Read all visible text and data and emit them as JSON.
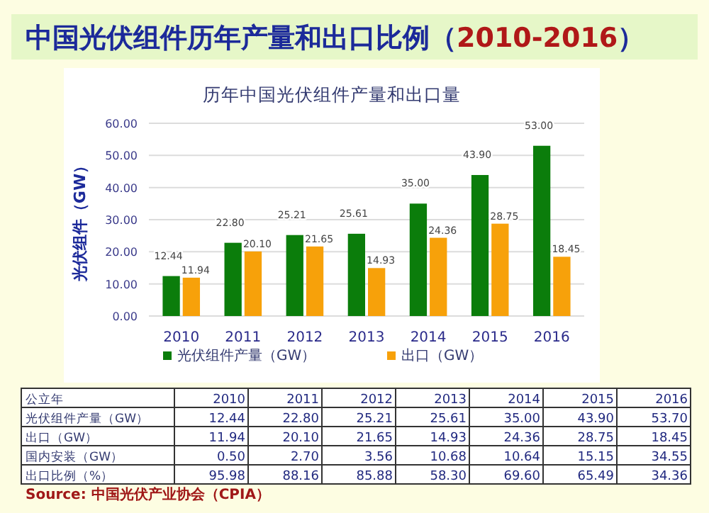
{
  "chart_data": {
    "type": "bar",
    "title": "中国光伏组件历年产量和出口比例（2010-2016）",
    "subtitle": "历年中国光伏组件产量和出口量",
    "ylabel": "光伏组件（GW）",
    "categories": [
      "2010",
      "2011",
      "2012",
      "2013",
      "2014",
      "2015",
      "2016"
    ],
    "series": [
      {
        "name": "光伏组件产量（GW）",
        "color": "#0b7d0b",
        "values": [
          12.44,
          22.8,
          25.21,
          25.61,
          35.0,
          43.9,
          53.0
        ],
        "value_labels": [
          "12.44",
          "22.80",
          "25.21",
          "25.61",
          "35.00",
          "43.90",
          "53.00"
        ]
      },
      {
        "name": "出口（GW）",
        "color": "#f7a10a",
        "values": [
          11.94,
          20.1,
          21.65,
          14.93,
          24.36,
          28.75,
          18.45
        ],
        "value_labels": [
          "11.94",
          "20.10",
          "21.65",
          "14.93",
          "24.36",
          "28.75",
          "18.45"
        ]
      }
    ],
    "ylim": [
      0,
      60
    ],
    "yticks": [
      {
        "value": 0,
        "label": "0.00"
      },
      {
        "value": 10,
        "label": "10.00"
      },
      {
        "value": 20,
        "label": "20.00"
      },
      {
        "value": 30,
        "label": "30.00"
      },
      {
        "value": 40,
        "label": "40.00"
      },
      {
        "value": 50,
        "label": "50.00"
      },
      {
        "value": 60,
        "label": "60.00"
      }
    ],
    "grid": "y",
    "legend": "bottom",
    "annotations": [
      "公立年 2010 2011 2012 2013 2014 2015 2016",
      "光伏组件产量（GW） 12.44 22.80 25.21 25.61 35.00 43.90 53.70",
      "出口（GW） 11.94 20.10 21.65 14.93 24.36 28.75 18.45",
      "国内安装（GW） 0.50 2.70 3.56 10.68 10.64 15.15 34.55",
      "出口比例（%） 95.98 88.16 85.88 58.30 69.60 65.49 34.36",
      "Source: 中国光伏产业协会（CPIA）"
    ]
  }
}
